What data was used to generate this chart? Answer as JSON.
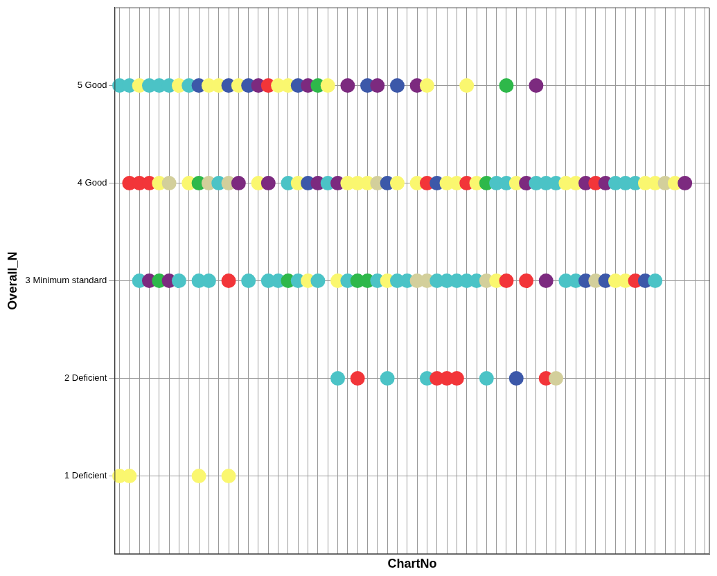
{
  "chart_data": {
    "type": "scatter",
    "xlabel": "ChartNo",
    "ylabel": "Overall_N",
    "categories": [
      null,
      null,
      null,
      null,
      null,
      null,
      null,
      null,
      null,
      null,
      null,
      null,
      null,
      null,
      null,
      null,
      null,
      null,
      null,
      null,
      null,
      null,
      null,
      null,
      null,
      null,
      null,
      null,
      null,
      null,
      null,
      null,
      null,
      null,
      null,
      null,
      null,
      null,
      null,
      null,
      null,
      null,
      null,
      null,
      null,
      null,
      null,
      null,
      null,
      null,
      null,
      null,
      null,
      null,
      null,
      null,
      null,
      null,
      null,
      null
    ],
    "ylim": [
      0.2,
      5.8
    ],
    "yticks": [
      {
        "value": 1,
        "label": "1 Deficient"
      },
      {
        "value": 2,
        "label": "2 Deficient"
      },
      {
        "value": 3,
        "label": "3 Minimum standard"
      },
      {
        "value": 4,
        "label": "4 Good"
      },
      {
        "value": 5,
        "label": "5 Good"
      }
    ],
    "grid": true,
    "legend": false,
    "marker": "circle",
    "tick_labels": "y",
    "series": [
      {
        "values": [
          5,
          5,
          5,
          5,
          5,
          5,
          5,
          5,
          5,
          5,
          5,
          5,
          5,
          5,
          5,
          5,
          5,
          5,
          5,
          5,
          5,
          5,
          null,
          5,
          null,
          5,
          5,
          null,
          5,
          null,
          5,
          5,
          null,
          null,
          null,
          5,
          null,
          null,
          null,
          5,
          null,
          null,
          5,
          null,
          null,
          null,
          null,
          null,
          null,
          null,
          null,
          null,
          null,
          null,
          null,
          null,
          null,
          null,
          null,
          null
        ],
        "colors": [
          "#4bc3c6",
          "#4bc3c6",
          "#faf76f",
          "#4bc3c6",
          "#4bc3c6",
          "#4bc3c6",
          "#faf76f",
          "#4bc3c6",
          "#3c58a9",
          "#faf76f",
          "#faf76f",
          "#3c58a9",
          "#faf76f",
          "#3c58a9",
          "#7c2a7f",
          "#f23539",
          "#faf76f",
          "#faf76f",
          "#3c58a9",
          "#7c2a7f",
          "#2eb84a",
          "#faf76f",
          null,
          "#7c2a7f",
          null,
          "#3c58a9",
          "#7c2a7f",
          null,
          "#3c58a9",
          null,
          "#7c2a7f",
          "#faf76f",
          null,
          null,
          null,
          "#faf76f",
          null,
          null,
          null,
          "#2eb84a",
          null,
          null,
          "#7c2a7f",
          null,
          null,
          null,
          null,
          null,
          null,
          null,
          null,
          null,
          null,
          null,
          null,
          null,
          null,
          null,
          null,
          null
        ]
      },
      {
        "values": [
          null,
          4,
          4,
          4,
          4,
          4,
          null,
          4,
          4,
          4,
          4,
          4,
          4,
          null,
          4,
          4,
          null,
          4,
          4,
          4,
          4,
          4,
          4,
          4,
          4,
          4,
          4,
          4,
          4,
          null,
          4,
          4,
          4,
          4,
          4,
          4,
          4,
          4,
          4,
          4,
          4,
          4,
          4,
          4,
          4,
          4,
          4,
          4,
          4,
          4,
          4,
          4,
          4,
          4,
          4,
          4,
          4,
          4,
          null,
          null
        ],
        "colors": [
          null,
          "#f23539",
          "#f23539",
          "#f23539",
          "#faf76f",
          "#d3cf9b",
          null,
          "#faf76f",
          "#2eb84a",
          "#d3cf9b",
          "#4bc3c6",
          "#d3cf9b",
          "#7c2a7f",
          null,
          "#faf76f",
          "#7c2a7f",
          null,
          "#4bc3c6",
          "#faf76f",
          "#3c58a9",
          "#7c2a7f",
          "#4bc3c6",
          "#7c2a7f",
          "#faf76f",
          "#faf76f",
          "#faf76f",
          "#d3cf9b",
          "#3c58a9",
          "#faf76f",
          null,
          "#faf76f",
          "#f23539",
          "#3c58a9",
          "#faf76f",
          "#faf76f",
          "#f23539",
          "#faf76f",
          "#2eb84a",
          "#4bc3c6",
          "#4bc3c6",
          "#faf76f",
          "#7c2a7f",
          "#4bc3c6",
          "#4bc3c6",
          "#4bc3c6",
          "#faf76f",
          "#faf76f",
          "#7c2a7f",
          "#f23539",
          "#7c2a7f",
          "#4bc3c6",
          "#4bc3c6",
          "#4bc3c6",
          "#faf76f",
          "#faf76f",
          "#d3cf9b",
          "#faf76f",
          "#7c2a7f",
          null,
          null
        ]
      },
      {
        "values": [
          null,
          null,
          3,
          3,
          3,
          3,
          3,
          null,
          3,
          3,
          null,
          3,
          null,
          3,
          null,
          3,
          3,
          3,
          3,
          3,
          3,
          null,
          3,
          3,
          3,
          3,
          3,
          3,
          3,
          3,
          3,
          3,
          3,
          3,
          3,
          3,
          3,
          3,
          3,
          3,
          null,
          3,
          null,
          3,
          null,
          3,
          3,
          3,
          3,
          3,
          3,
          3,
          3,
          3,
          3,
          null,
          null,
          null,
          null,
          null
        ],
        "colors": [
          null,
          null,
          "#4bc3c6",
          "#7c2a7f",
          "#2eb84a",
          "#7c2a7f",
          "#4bc3c6",
          null,
          "#4bc3c6",
          "#4bc3c6",
          null,
          "#f23539",
          null,
          "#4bc3c6",
          null,
          "#4bc3c6",
          "#4bc3c6",
          "#2eb84a",
          "#4bc3c6",
          "#faf76f",
          "#4bc3c6",
          null,
          "#faf76f",
          "#4bc3c6",
          "#2eb84a",
          "#2eb84a",
          "#4bc3c6",
          "#faf76f",
          "#4bc3c6",
          "#4bc3c6",
          "#d3cf9b",
          "#d3cf9b",
          "#4bc3c6",
          "#4bc3c6",
          "#4bc3c6",
          "#4bc3c6",
          "#4bc3c6",
          "#d3cf9b",
          "#faf76f",
          "#f23539",
          null,
          "#f23539",
          null,
          "#7c2a7f",
          null,
          "#4bc3c6",
          "#4bc3c6",
          "#3c58a9",
          "#d3cf9b",
          "#3c58a9",
          "#faf76f",
          "#faf76f",
          "#f23539",
          "#3c58a9",
          "#4bc3c6",
          null,
          null,
          null,
          null,
          null
        ]
      },
      {
        "values": [
          null,
          null,
          null,
          null,
          null,
          null,
          null,
          null,
          null,
          null,
          null,
          null,
          null,
          null,
          null,
          null,
          null,
          null,
          null,
          null,
          null,
          null,
          2,
          null,
          2,
          null,
          null,
          2,
          null,
          null,
          null,
          2,
          2,
          2,
          2,
          null,
          null,
          2,
          null,
          null,
          2,
          null,
          null,
          2,
          2,
          null,
          null,
          null,
          null,
          null,
          null,
          null,
          null,
          null,
          null,
          null,
          null,
          null,
          null,
          null
        ],
        "colors": [
          null,
          null,
          null,
          null,
          null,
          null,
          null,
          null,
          null,
          null,
          null,
          null,
          null,
          null,
          null,
          null,
          null,
          null,
          null,
          null,
          null,
          null,
          "#4bc3c6",
          null,
          "#f23539",
          null,
          null,
          "#4bc3c6",
          null,
          null,
          null,
          "#4bc3c6",
          "#f23539",
          "#f23539",
          "#f23539",
          null,
          null,
          "#4bc3c6",
          null,
          null,
          "#3c58a9",
          null,
          null,
          "#f23539",
          "#d3cf9b",
          null,
          null,
          null,
          null,
          null,
          null,
          null,
          null,
          null,
          null,
          null,
          null,
          null,
          null,
          null
        ]
      },
      {
        "values": [
          1,
          1,
          null,
          null,
          null,
          null,
          null,
          null,
          1,
          null,
          null,
          1,
          null,
          null,
          null,
          null,
          null,
          null,
          null,
          null,
          null,
          null,
          null,
          null,
          null,
          null,
          null,
          null,
          null,
          null,
          null,
          null,
          null,
          null,
          null,
          null,
          null,
          null,
          null,
          null,
          null,
          null,
          null,
          null,
          null,
          null,
          null,
          null,
          null,
          null,
          null,
          null,
          null,
          null,
          null,
          null,
          null,
          null,
          null,
          null
        ],
        "colors": [
          "#faf76f",
          "#faf76f",
          null,
          null,
          null,
          null,
          null,
          null,
          "#faf76f",
          null,
          null,
          "#faf76f",
          null,
          null,
          null,
          null,
          null,
          null,
          null,
          null,
          null,
          null,
          null,
          null,
          null,
          null,
          null,
          null,
          null,
          null,
          null,
          null,
          null,
          null,
          null,
          null,
          null,
          null,
          null,
          null,
          null,
          null,
          null,
          null,
          null,
          null,
          null,
          null,
          null,
          null,
          null,
          null,
          null,
          null,
          null,
          null,
          null,
          null,
          null,
          null
        ]
      }
    ]
  }
}
